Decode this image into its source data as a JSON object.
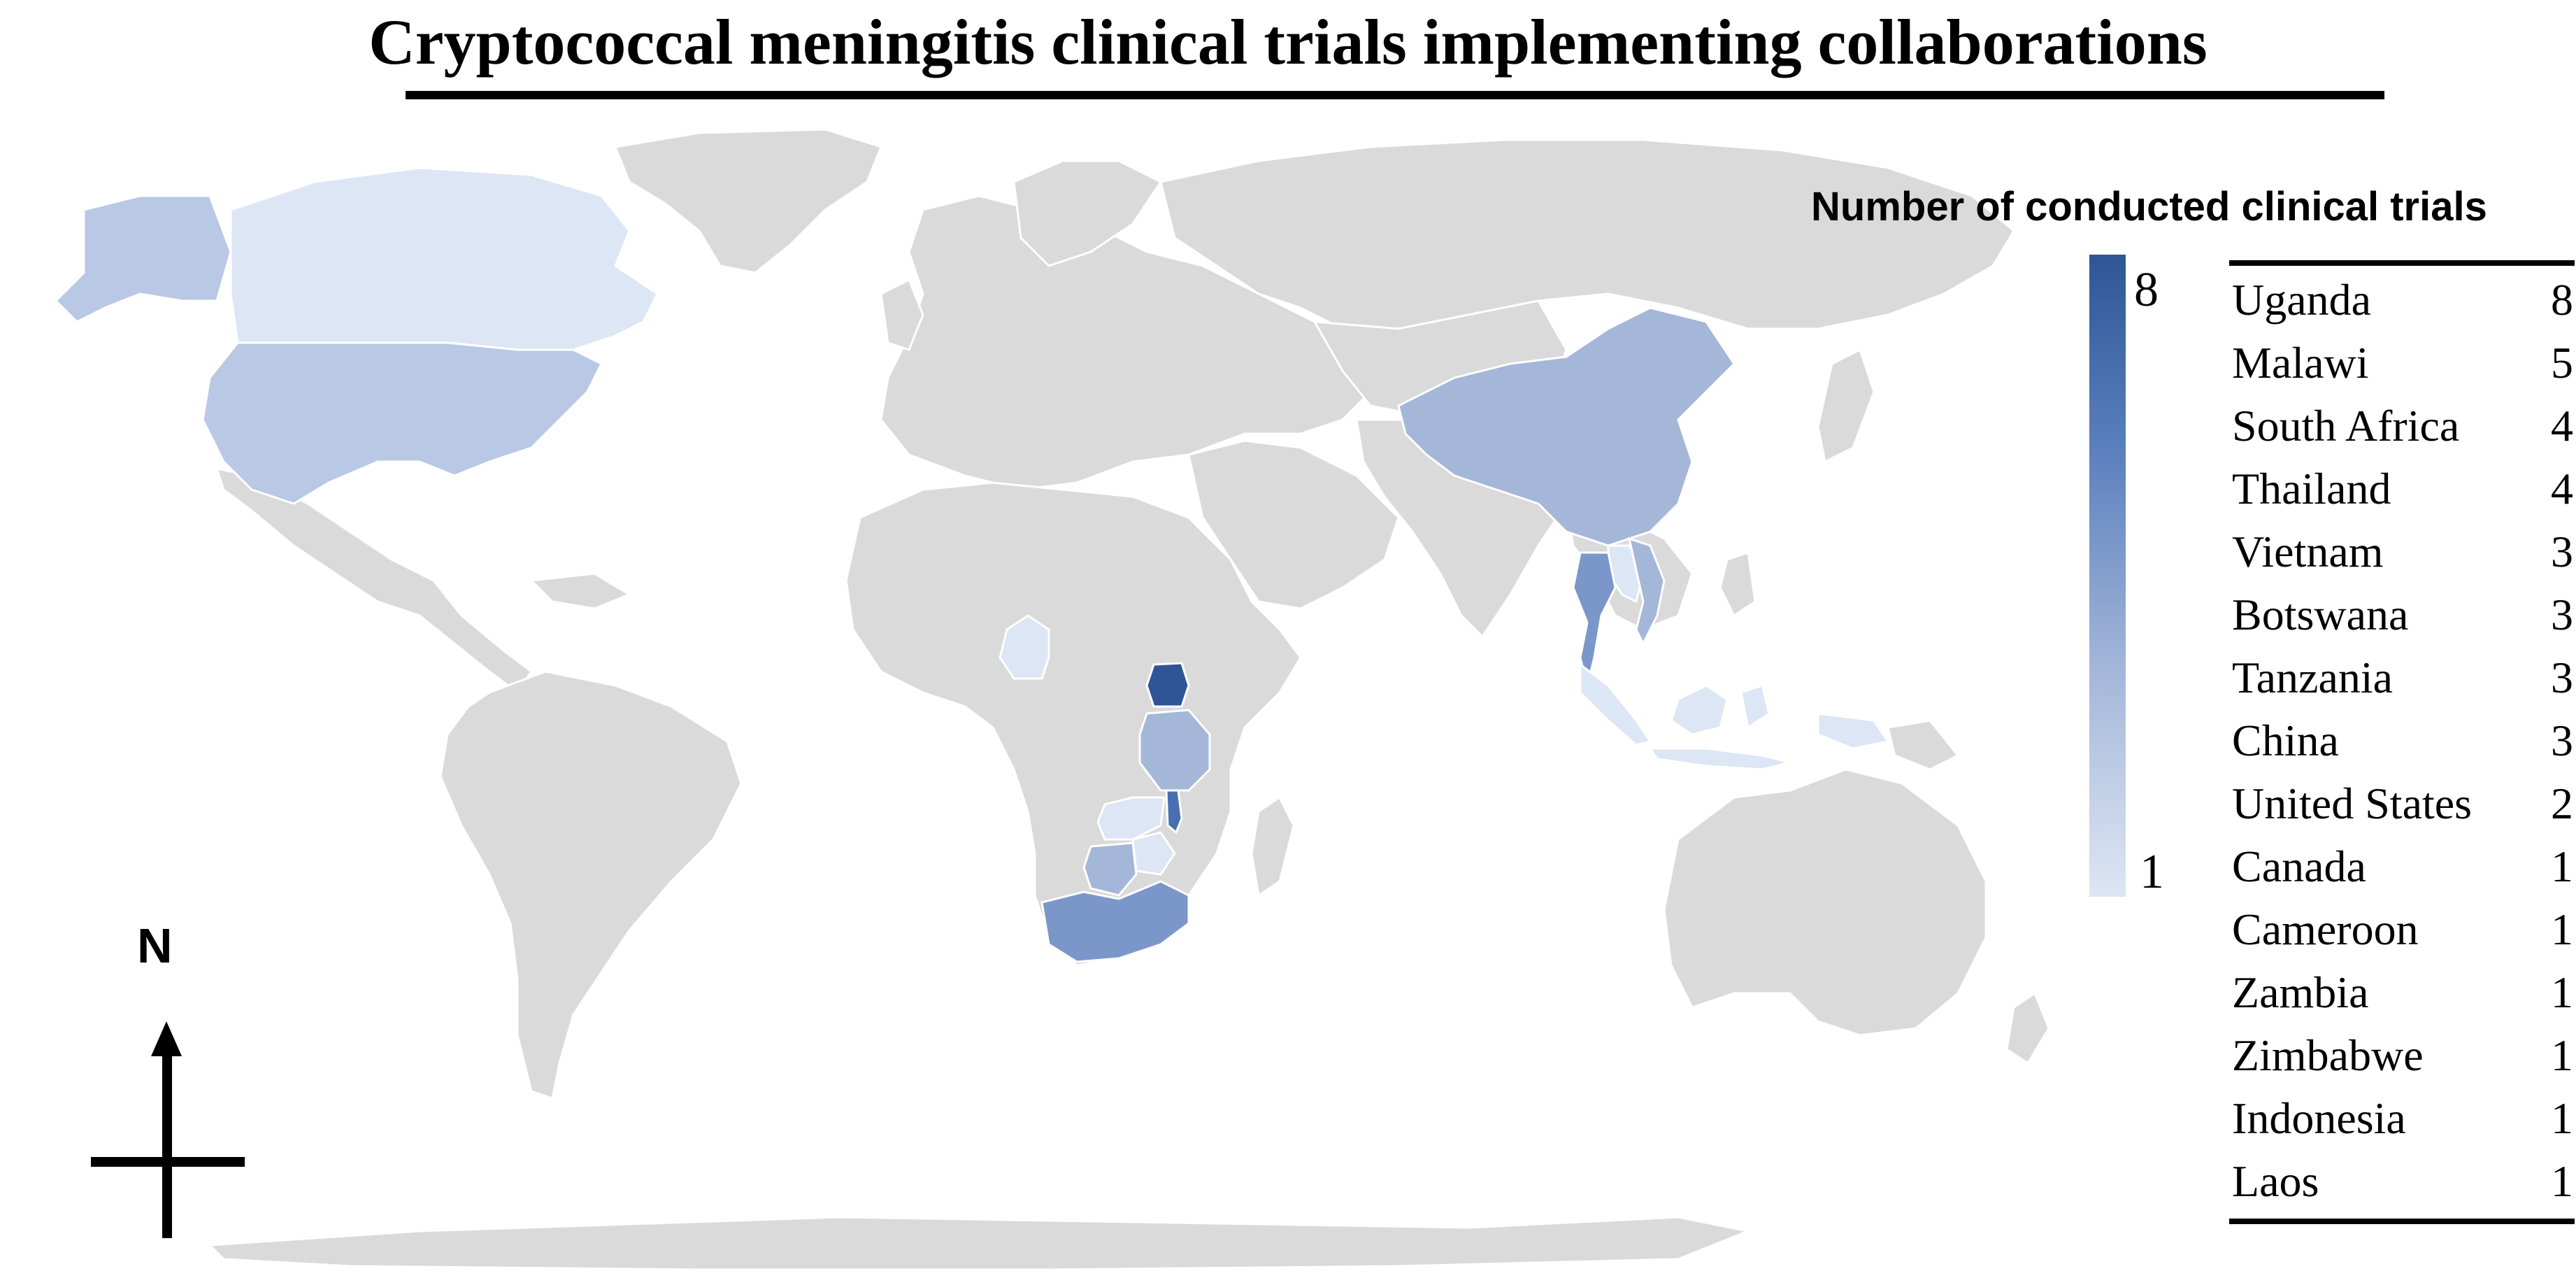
{
  "title": "Cryptococcal meningitis clinical trials implementing collaborations",
  "legend": {
    "title": "Number of conducted  clinical trials",
    "scale_max_label": "8",
    "scale_min_label": "1",
    "scale_colors": {
      "max": "#2f5597",
      "min": "#dde6f4"
    }
  },
  "table": [
    {
      "country": "Uganda",
      "count": "8"
    },
    {
      "country": "Malawi",
      "count": "5"
    },
    {
      "country": "South Africa",
      "count": "4"
    },
    {
      "country": "Thailand",
      "count": "4"
    },
    {
      "country": "Vietnam",
      "count": "3"
    },
    {
      "country": "Botswana",
      "count": "3"
    },
    {
      "country": "Tanzania",
      "count": "3"
    },
    {
      "country": "China",
      "count": "3"
    },
    {
      "country": "United States",
      "count": "2"
    },
    {
      "country": "Canada",
      "count": "1"
    },
    {
      "country": "Cameroon",
      "count": "1"
    },
    {
      "country": "Zambia",
      "count": "1"
    },
    {
      "country": "Zimbabwe",
      "count": "1"
    },
    {
      "country": "Indonesia",
      "count": "1"
    },
    {
      "country": "Laos",
      "count": "1"
    }
  ],
  "compass": {
    "label": "N"
  },
  "colors": {
    "land": "#dadada",
    "border": "#ffffff",
    "level_8": "#2f5597",
    "level_5": "#4a6fb0",
    "level_4": "#7b97c9",
    "level_3": "#a4b7d9",
    "level_2": "#b9c8e4",
    "level_1": "#dde6f4"
  }
}
